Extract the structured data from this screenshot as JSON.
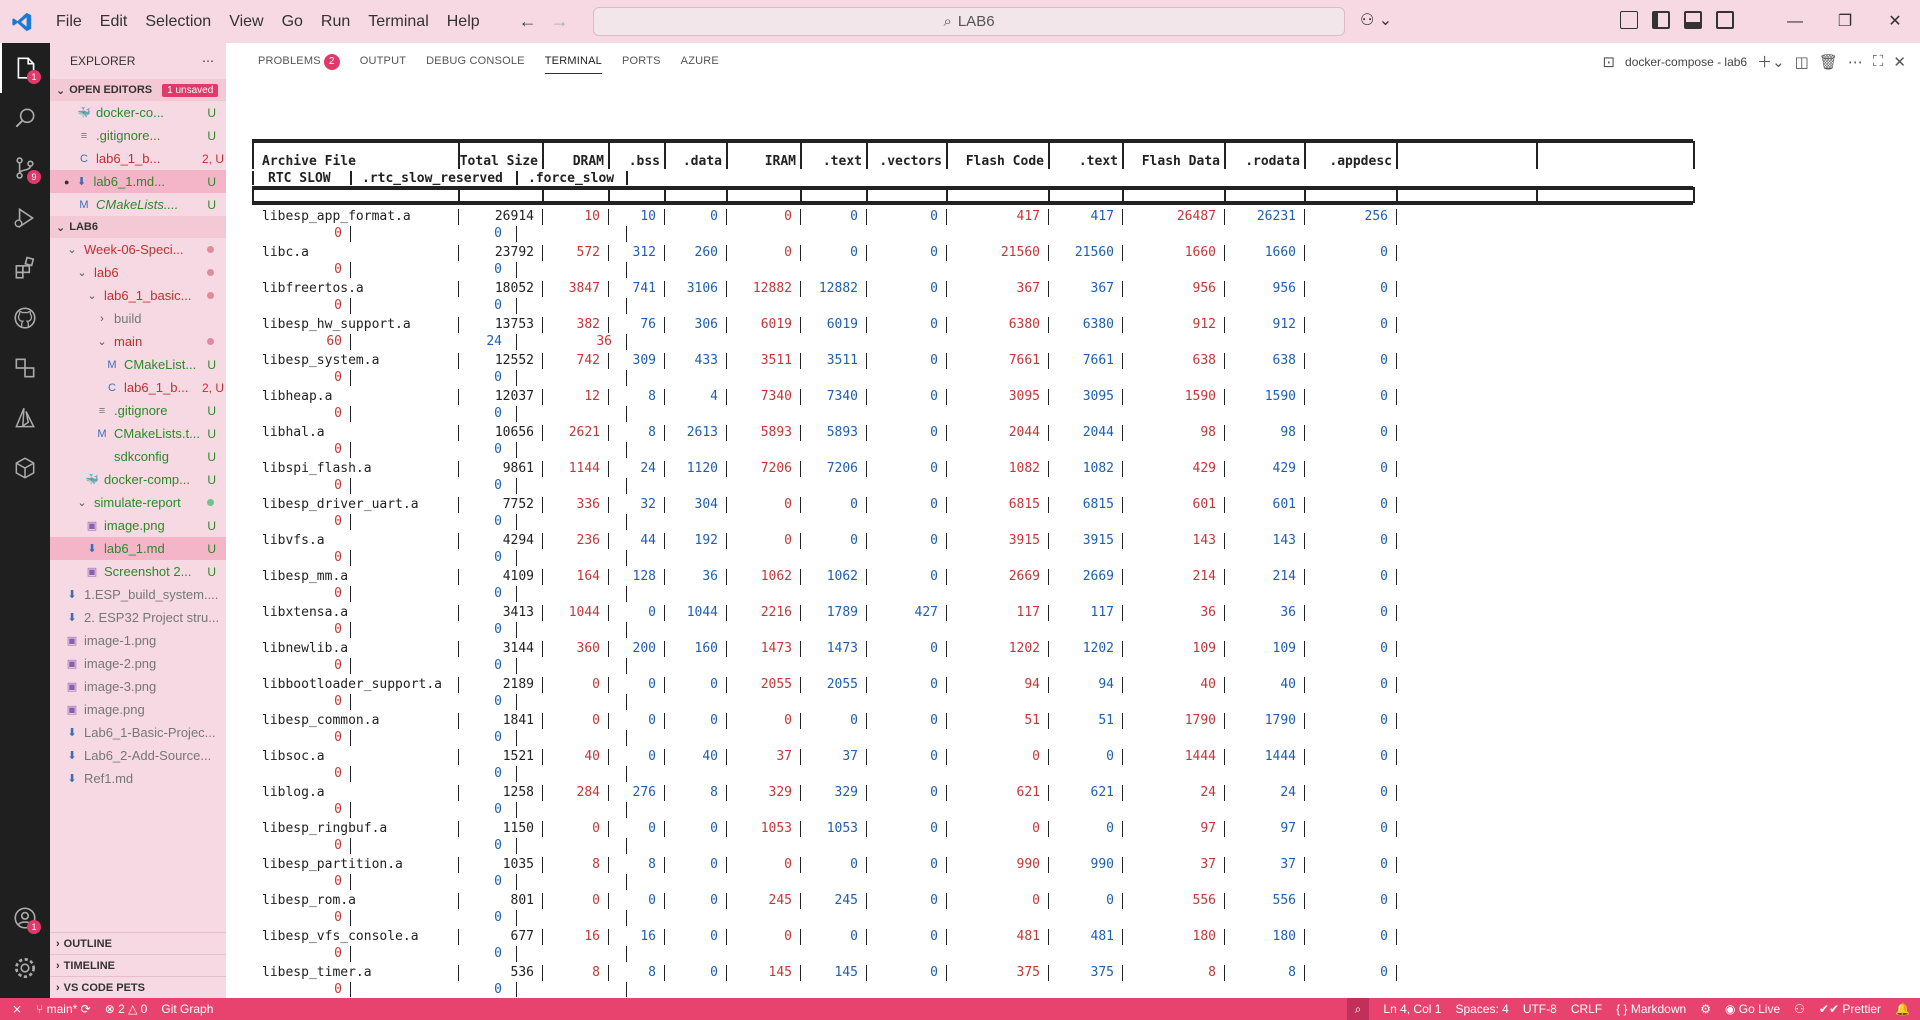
{
  "titlebar": {
    "menu": [
      "File",
      "Edit",
      "Selection",
      "View",
      "Go",
      "Run",
      "Terminal",
      "Help"
    ],
    "search": "LAB6",
    "window_controls": [
      "minimize-icon",
      "restore-icon",
      "close-icon"
    ]
  },
  "activity": {
    "explorer_badge": "1",
    "scm_badge": "9"
  },
  "sidebar": {
    "title": "EXPLORER",
    "open_editors": {
      "label": "OPEN EDITORS",
      "badge": "1 unsaved",
      "items": [
        {
          "icon": "docker-icon",
          "label": "docker-co...",
          "status": "U",
          "color": "green"
        },
        {
          "icon": "gitignore-icon",
          "label": ".gitignore...",
          "status": "U",
          "color": "green"
        },
        {
          "icon": "c-file-icon",
          "label": "lab6_1_b...",
          "status": "2, U",
          "color": "red"
        },
        {
          "icon": "markdown-icon",
          "label": "lab6_1.md...",
          "status": "U",
          "color": "green",
          "selected": true,
          "dirty": true
        },
        {
          "icon": "cmake-icon",
          "label": "CMakeLists....",
          "status": "U",
          "color": "green",
          "italic": true
        }
      ]
    },
    "workspace": {
      "label": "LAB6",
      "items": [
        {
          "indent": 1,
          "type": "folder-open",
          "label": "Week-06-Speci...",
          "color": "red",
          "dot": "red"
        },
        {
          "indent": 2,
          "type": "folder-open",
          "label": "lab6",
          "color": "red",
          "dot": "red"
        },
        {
          "indent": 3,
          "type": "folder-open",
          "label": "lab6_1_basic...",
          "color": "red",
          "dot": "red"
        },
        {
          "indent": 4,
          "type": "folder-closed",
          "label": "build",
          "color": "gray"
        },
        {
          "indent": 4,
          "type": "folder-open",
          "label": "main",
          "color": "red",
          "dot": "red"
        },
        {
          "indent": 5,
          "type": "cmake",
          "label": "CMakeList...",
          "color": "green",
          "status": "U"
        },
        {
          "indent": 5,
          "type": "c",
          "label": "lab6_1_b...",
          "color": "red",
          "status": "2, U"
        },
        {
          "indent": 4,
          "type": "gitignore",
          "label": ".gitignore",
          "color": "green",
          "status": "U"
        },
        {
          "indent": 4,
          "type": "cmake",
          "label": "CMakeLists.t...",
          "color": "green",
          "status": "U"
        },
        {
          "indent": 4,
          "type": "config",
          "label": "sdkconfig",
          "color": "green",
          "status": "U"
        },
        {
          "indent": 3,
          "type": "docker",
          "label": "docker-comp...",
          "color": "green",
          "status": "U"
        },
        {
          "indent": 2,
          "type": "folder-open",
          "label": "simulate-report",
          "color": "green",
          "dot": "green"
        },
        {
          "indent": 3,
          "type": "image",
          "label": "image.png",
          "color": "green",
          "status": "U"
        },
        {
          "indent": 3,
          "type": "markdown",
          "label": "lab6_1.md",
          "color": "green",
          "status": "U",
          "selected": true
        },
        {
          "indent": 3,
          "type": "image",
          "label": "Screenshot 2...",
          "color": "green",
          "status": "U"
        },
        {
          "indent": 1,
          "type": "markdown",
          "label": "1.ESP_build_system....",
          "color": "gray"
        },
        {
          "indent": 1,
          "type": "markdown",
          "label": "2. ESP32 Project stru...",
          "color": "gray"
        },
        {
          "indent": 1,
          "type": "image",
          "label": "image-1.png",
          "color": "gray"
        },
        {
          "indent": 1,
          "type": "image",
          "label": "image-2.png",
          "color": "gray"
        },
        {
          "indent": 1,
          "type": "image",
          "label": "image-3.png",
          "color": "gray"
        },
        {
          "indent": 1,
          "type": "image",
          "label": "image.png",
          "color": "gray"
        },
        {
          "indent": 1,
          "type": "markdown",
          "label": "Lab6_1-Basic-Projec...",
          "color": "gray"
        },
        {
          "indent": 1,
          "type": "markdown",
          "label": "Lab6_2-Add-Source...",
          "color": "gray"
        },
        {
          "indent": 1,
          "type": "markdown",
          "label": "Ref1.md",
          "color": "gray"
        }
      ]
    },
    "bottom": [
      "OUTLINE",
      "TIMELINE",
      "VS CODE PETS"
    ]
  },
  "panel": {
    "tabs": [
      {
        "label": "PROBLEMS",
        "badge": "2"
      },
      {
        "label": "OUTPUT"
      },
      {
        "label": "DEBUG CONSOLE"
      },
      {
        "label": "TERMINAL",
        "active": true
      },
      {
        "label": "PORTS"
      },
      {
        "label": "AZURE"
      }
    ],
    "terminal_name": "docker-compose - lab6"
  },
  "table": {
    "headers": [
      "Archive File",
      "Total Size",
      "DRAM",
      ".bss",
      ".data",
      "IRAM",
      ".text",
      ".vectors",
      "Flash Code",
      ".text",
      "Flash Data",
      ".rodata",
      ".appdesc"
    ],
    "headers2": [
      "RTC SLOW",
      ".rtc_slow_reserved",
      ".force_slow"
    ],
    "rows": [
      {
        "name": "libesp_app_format.a",
        "v": [
          "26914",
          "10",
          "10",
          "0",
          "0",
          "0",
          "0",
          "417",
          "417",
          "26487",
          "26231",
          "256"
        ],
        "w": [
          "0",
          "0"
        ]
      },
      {
        "name": "libc.a",
        "v": [
          "23792",
          "572",
          "312",
          "260",
          "0",
          "0",
          "0",
          "21560",
          "21560",
          "1660",
          "1660",
          "0"
        ],
        "w": [
          "0",
          "0"
        ]
      },
      {
        "name": "libfreertos.a",
        "v": [
          "18052",
          "3847",
          "741",
          "3106",
          "12882",
          "12882",
          "0",
          "367",
          "367",
          "956",
          "956",
          "0"
        ],
        "w": [
          "0",
          "0"
        ]
      },
      {
        "name": "libesp_hw_support.a",
        "v": [
          "13753",
          "382",
          "76",
          "306",
          "6019",
          "6019",
          "0",
          "6380",
          "6380",
          "912",
          "912",
          "0"
        ],
        "w": [
          "60",
          "24",
          "36"
        ]
      },
      {
        "name": "libesp_system.a",
        "v": [
          "12552",
          "742",
          "309",
          "433",
          "3511",
          "3511",
          "0",
          "7661",
          "7661",
          "638",
          "638",
          "0"
        ],
        "w": [
          "0",
          "0"
        ]
      },
      {
        "name": "libheap.a",
        "v": [
          "12037",
          "12",
          "8",
          "4",
          "7340",
          "7340",
          "0",
          "3095",
          "3095",
          "1590",
          "1590",
          "0"
        ],
        "w": [
          "0",
          "0"
        ]
      },
      {
        "name": "libhal.a",
        "v": [
          "10656",
          "2621",
          "8",
          "2613",
          "5893",
          "5893",
          "0",
          "2044",
          "2044",
          "98",
          "98",
          "0"
        ],
        "w": [
          "0",
          "0"
        ]
      },
      {
        "name": "libspi_flash.a",
        "v": [
          "9861",
          "1144",
          "24",
          "1120",
          "7206",
          "7206",
          "0",
          "1082",
          "1082",
          "429",
          "429",
          "0"
        ],
        "w": [
          "0",
          "0"
        ]
      },
      {
        "name": "libesp_driver_uart.a",
        "v": [
          "7752",
          "336",
          "32",
          "304",
          "0",
          "0",
          "0",
          "6815",
          "6815",
          "601",
          "601",
          "0"
        ],
        "w": [
          "0",
          "0"
        ]
      },
      {
        "name": "libvfs.a",
        "v": [
          "4294",
          "236",
          "44",
          "192",
          "0",
          "0",
          "0",
          "3915",
          "3915",
          "143",
          "143",
          "0"
        ],
        "w": [
          "0",
          "0"
        ]
      },
      {
        "name": "libesp_mm.a",
        "v": [
          "4109",
          "164",
          "128",
          "36",
          "1062",
          "1062",
          "0",
          "2669",
          "2669",
          "214",
          "214",
          "0"
        ],
        "w": [
          "0",
          "0"
        ]
      },
      {
        "name": "libxtensa.a",
        "v": [
          "3413",
          "1044",
          "0",
          "1044",
          "2216",
          "1789",
          "427",
          "117",
          "117",
          "36",
          "36",
          "0"
        ],
        "w": [
          "0",
          "0"
        ]
      },
      {
        "name": "libnewlib.a",
        "v": [
          "3144",
          "360",
          "200",
          "160",
          "1473",
          "1473",
          "0",
          "1202",
          "1202",
          "109",
          "109",
          "0"
        ],
        "w": [
          "0",
          "0"
        ]
      },
      {
        "name": "libbootloader_support.a",
        "v": [
          "2189",
          "0",
          "0",
          "0",
          "2055",
          "2055",
          "0",
          "94",
          "94",
          "40",
          "40",
          "0"
        ],
        "w": [
          "0",
          "0"
        ]
      },
      {
        "name": "libesp_common.a",
        "v": [
          "1841",
          "0",
          "0",
          "0",
          "0",
          "0",
          "0",
          "51",
          "51",
          "1790",
          "1790",
          "0"
        ],
        "w": [
          "0",
          "0"
        ]
      },
      {
        "name": "libsoc.a",
        "v": [
          "1521",
          "40",
          "0",
          "40",
          "37",
          "37",
          "0",
          "0",
          "0",
          "1444",
          "1444",
          "0"
        ],
        "w": [
          "0",
          "0"
        ]
      },
      {
        "name": "liblog.a",
        "v": [
          "1258",
          "284",
          "276",
          "8",
          "329",
          "329",
          "0",
          "621",
          "621",
          "24",
          "24",
          "0"
        ],
        "w": [
          "0",
          "0"
        ]
      },
      {
        "name": "libesp_ringbuf.a",
        "v": [
          "1150",
          "0",
          "0",
          "0",
          "1053",
          "1053",
          "0",
          "0",
          "0",
          "97",
          "97",
          "0"
        ],
        "w": [
          "0",
          "0"
        ]
      },
      {
        "name": "libesp_partition.a",
        "v": [
          "1035",
          "8",
          "8",
          "0",
          "0",
          "0",
          "0",
          "990",
          "990",
          "37",
          "37",
          "0"
        ],
        "w": [
          "0",
          "0"
        ]
      },
      {
        "name": "libesp_rom.a",
        "v": [
          "801",
          "0",
          "0",
          "0",
          "245",
          "245",
          "0",
          "0",
          "0",
          "556",
          "556",
          "0"
        ],
        "w": [
          "0",
          "0"
        ]
      },
      {
        "name": "libesp_vfs_console.a",
        "v": [
          "677",
          "16",
          "16",
          "0",
          "0",
          "0",
          "0",
          "481",
          "481",
          "180",
          "180",
          "0"
        ],
        "w": [
          "0",
          "0"
        ]
      },
      {
        "name": "libesp_timer.a",
        "v": [
          "536",
          "8",
          "8",
          "0",
          "145",
          "145",
          "0",
          "375",
          "375",
          "8",
          "8",
          "0"
        ],
        "w": [
          "0",
          "0"
        ]
      }
    ]
  },
  "statusbar": {
    "branch": "main*",
    "errors": "2",
    "warnings": "0",
    "git_graph": "Git Graph",
    "position": "Ln 4, Col 1",
    "spaces": "Spaces: 4",
    "encoding": "UTF-8",
    "eol": "CRLF",
    "language": "Markdown",
    "golive": "Go Live",
    "prettier": "Prettier"
  },
  "colors": {
    "accent": "#e8436e",
    "sidebar_bg": "#f6d9e2",
    "activity_bg": "#1f1f1f",
    "blue_value": "#1d5fb3",
    "red_value": "#c73636"
  }
}
